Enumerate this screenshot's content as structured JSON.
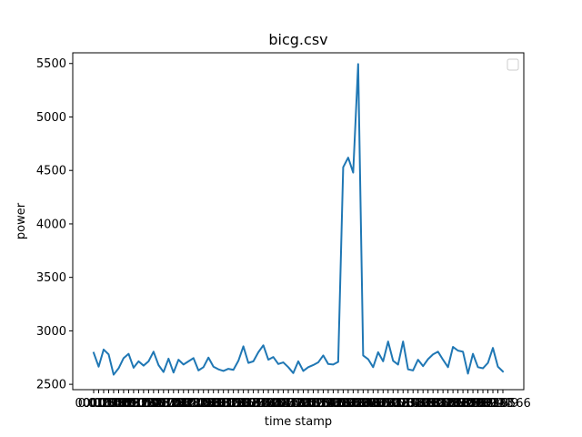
{
  "chart_data": {
    "type": "line",
    "title": "bicg.csv",
    "xlabel": "time stamp",
    "ylabel": "power",
    "ylim": [
      2450,
      5600
    ],
    "yticks": [
      2500,
      3000,
      3500,
      4000,
      4500,
      5000,
      5500
    ],
    "xtick_label_start": "0000",
    "xtick_label_end": "0.9566",
    "legend": {
      "placement": "top-right",
      "entries": []
    },
    "grid": false,
    "color": "#1f77b4",
    "series": [
      {
        "values": [
          2795,
          2665,
          2825,
          2780,
          2590,
          2650,
          2745,
          2785,
          2655,
          2715,
          2675,
          2715,
          2805,
          2680,
          2615,
          2740,
          2610,
          2730,
          2685,
          2715,
          2745,
          2630,
          2660,
          2750,
          2665,
          2640,
          2625,
          2645,
          2635,
          2720,
          2855,
          2700,
          2715,
          2800,
          2865,
          2730,
          2755,
          2690,
          2705,
          2660,
          2605,
          2715,
          2625,
          2660,
          2680,
          2705,
          2770,
          2690,
          2685,
          2710,
          4530,
          4620,
          4480,
          5495,
          2770,
          2735,
          2660,
          2800,
          2715,
          2900,
          2720,
          2685,
          2900,
          2640,
          2630,
          2730,
          2670,
          2735,
          2780,
          2805,
          2730,
          2660,
          2850,
          2815,
          2805,
          2600,
          2785,
          2660,
          2650,
          2700,
          2840,
          2665,
          2620
        ]
      }
    ]
  }
}
